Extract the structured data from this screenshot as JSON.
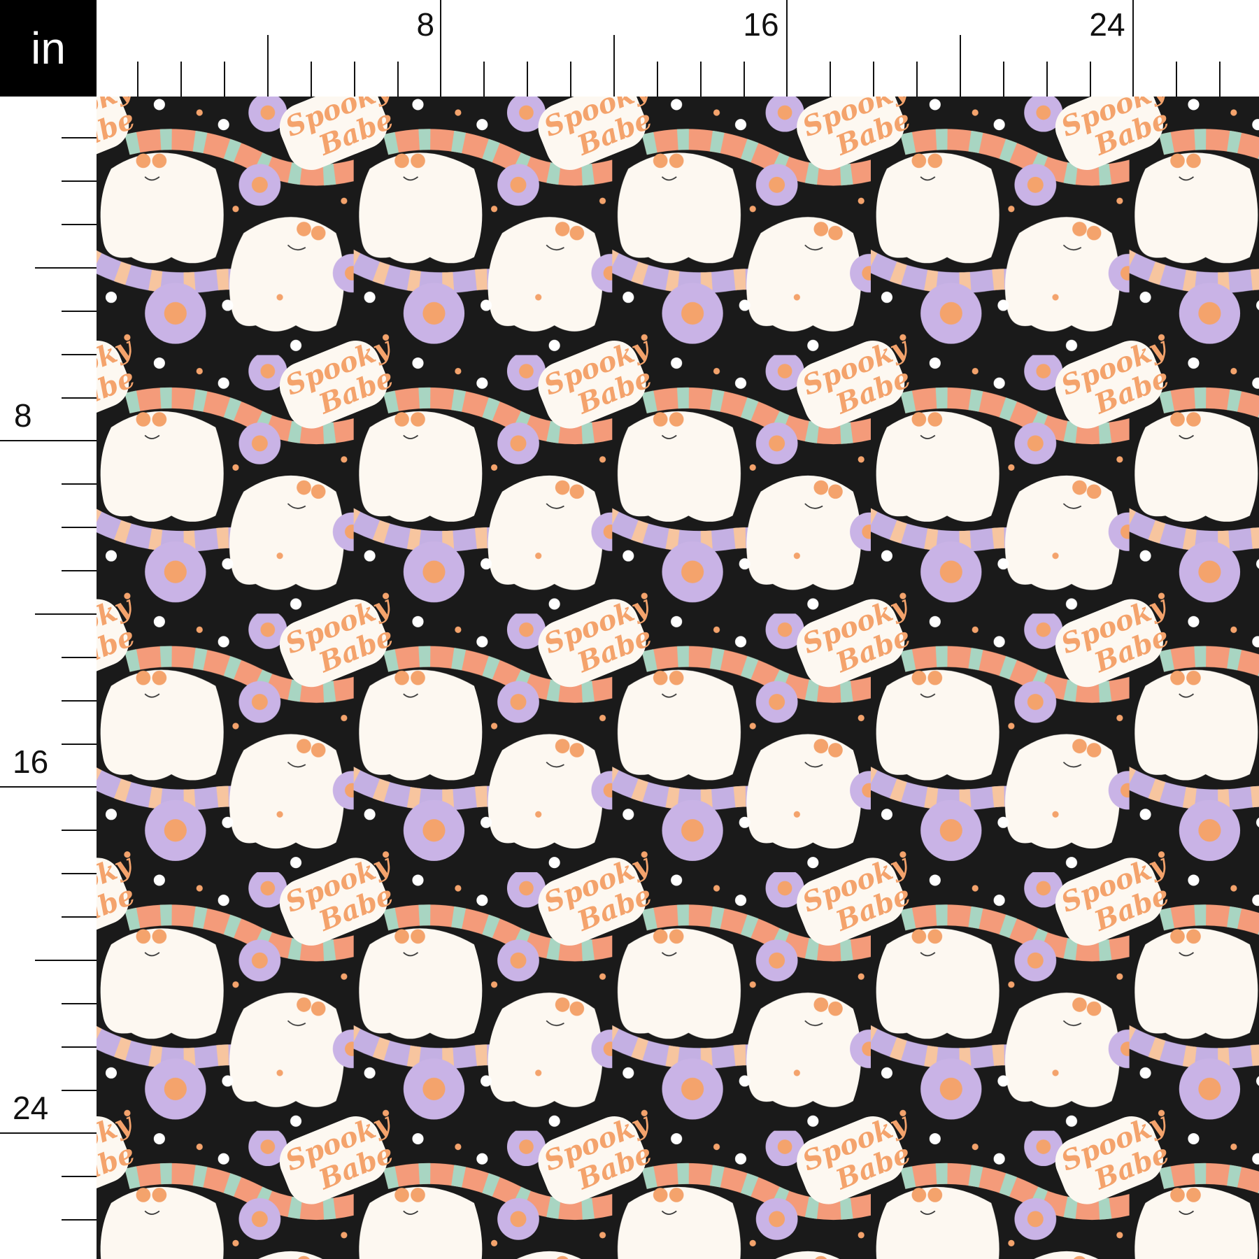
{
  "ruler": {
    "unit": "in",
    "top_labels": [
      "8",
      "16",
      "24"
    ],
    "left_labels": [
      "8",
      "16",
      "24"
    ]
  },
  "pattern": {
    "motif_text_1": "Spooky",
    "motif_text_2": "Babe",
    "colors": {
      "background": "#1a1a1a",
      "ghost": "#fdf8f1",
      "flower": "#c9b3e6",
      "accent_orange": "#f4a36c",
      "scarf": [
        "#f49b7a",
        "#a8d5c2",
        "#c4b0e3",
        "#f7c59f"
      ]
    }
  }
}
